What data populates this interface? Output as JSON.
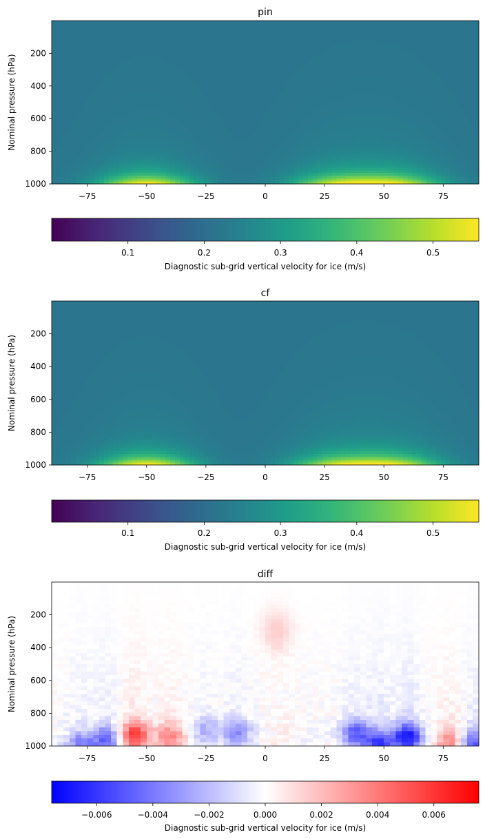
{
  "chart_data": [
    {
      "type": "heatmap",
      "title": "pin",
      "xlabel": "",
      "ylabel": "Nominal pressure (hPa)",
      "xlim": [
        -90,
        90
      ],
      "ylim": [
        1000,
        0
      ],
      "y_inverted": true,
      "xticks": [
        -75,
        -50,
        -25,
        0,
        25,
        50,
        75
      ],
      "xtick_labels": [
        "−75",
        "−50",
        "−25",
        "0",
        "25",
        "50",
        "75"
      ],
      "yticks": [
        200,
        400,
        600,
        800,
        1000
      ],
      "ytick_labels": [
        "200",
        "400",
        "600",
        "800",
        "1000"
      ],
      "colormap": "viridis",
      "colorbar": {
        "label": "Diagnostic sub-grid vertical velocity for ice (m/s)",
        "range": [
          0.0,
          0.56
        ],
        "ticks": [
          0.1,
          0.2,
          0.3,
          0.4,
          0.5
        ],
        "tick_labels": [
          "0.1",
          "0.2",
          "0.3",
          "0.4",
          "0.5"
        ],
        "orientation": "horizontal"
      },
      "background_value": 0.22,
      "maxima": [
        {
          "lat": -50,
          "pressure": 990,
          "value": 0.54
        },
        {
          "lat": 30,
          "pressure": 995,
          "value": 0.46
        },
        {
          "lat": 55,
          "pressure": 995,
          "value": 0.48
        }
      ]
    },
    {
      "type": "heatmap",
      "title": "cf",
      "xlabel": "",
      "ylabel": "Nominal pressure (hPa)",
      "xlim": [
        -90,
        90
      ],
      "ylim": [
        1000,
        0
      ],
      "y_inverted": true,
      "xticks": [
        -75,
        -50,
        -25,
        0,
        25,
        50,
        75
      ],
      "xtick_labels": [
        "−75",
        "−50",
        "−25",
        "0",
        "25",
        "50",
        "75"
      ],
      "yticks": [
        200,
        400,
        600,
        800,
        1000
      ],
      "ytick_labels": [
        "200",
        "400",
        "600",
        "800",
        "1000"
      ],
      "colormap": "viridis",
      "colorbar": {
        "label": "Diagnostic sub-grid vertical velocity for ice (m/s)",
        "range": [
          0.0,
          0.56
        ],
        "ticks": [
          0.1,
          0.2,
          0.3,
          0.4,
          0.5
        ],
        "tick_labels": [
          "0.1",
          "0.2",
          "0.3",
          "0.4",
          "0.5"
        ],
        "orientation": "horizontal"
      },
      "background_value": 0.22,
      "maxima": [
        {
          "lat": -50,
          "pressure": 990,
          "value": 0.54
        },
        {
          "lat": 30,
          "pressure": 995,
          "value": 0.45
        },
        {
          "lat": 55,
          "pressure": 995,
          "value": 0.47
        }
      ]
    },
    {
      "type": "heatmap",
      "title": "diff",
      "xlabel": "",
      "ylabel": "Nominal pressure (hPa)",
      "xlim": [
        -90,
        90
      ],
      "ylim": [
        1000,
        0
      ],
      "y_inverted": true,
      "xticks": [
        -75,
        -50,
        -25,
        0,
        25,
        50,
        75
      ],
      "xtick_labels": [
        "−75",
        "−50",
        "−25",
        "0",
        "25",
        "50",
        "75"
      ],
      "yticks": [
        200,
        400,
        600,
        800,
        1000
      ],
      "ytick_labels": [
        "200",
        "400",
        "600",
        "800",
        "1000"
      ],
      "colormap": "bwr",
      "colorbar": {
        "label": "Diagnostic sub-grid vertical velocity for ice (m/s)",
        "range": [
          -0.0076,
          0.0076
        ],
        "ticks": [
          -0.006,
          -0.004,
          -0.002,
          0.0,
          0.002,
          0.004,
          0.006
        ],
        "tick_labels": [
          "−0.006",
          "−0.004",
          "−0.002",
          "0.000",
          "0.002",
          "0.004",
          "0.006"
        ],
        "orientation": "horizontal"
      },
      "features": [
        {
          "lat": -78,
          "pressure": 990,
          "value": -0.003
        },
        {
          "lat": -67,
          "pressure": 960,
          "value": -0.004
        },
        {
          "lat": -55,
          "pressure": 930,
          "value": 0.005
        },
        {
          "lat": -40,
          "pressure": 940,
          "value": 0.003
        },
        {
          "lat": -25,
          "pressure": 900,
          "value": -0.002
        },
        {
          "lat": -12,
          "pressure": 920,
          "value": -0.003
        },
        {
          "lat": 5,
          "pressure": 300,
          "value": 0.0015
        },
        {
          "lat": 38,
          "pressure": 920,
          "value": -0.004
        },
        {
          "lat": 48,
          "pressure": 990,
          "value": -0.005
        },
        {
          "lat": 60,
          "pressure": 940,
          "value": -0.006
        },
        {
          "lat": 78,
          "pressure": 980,
          "value": 0.003
        },
        {
          "lat": 88,
          "pressure": 980,
          "value": -0.004
        }
      ]
    }
  ]
}
